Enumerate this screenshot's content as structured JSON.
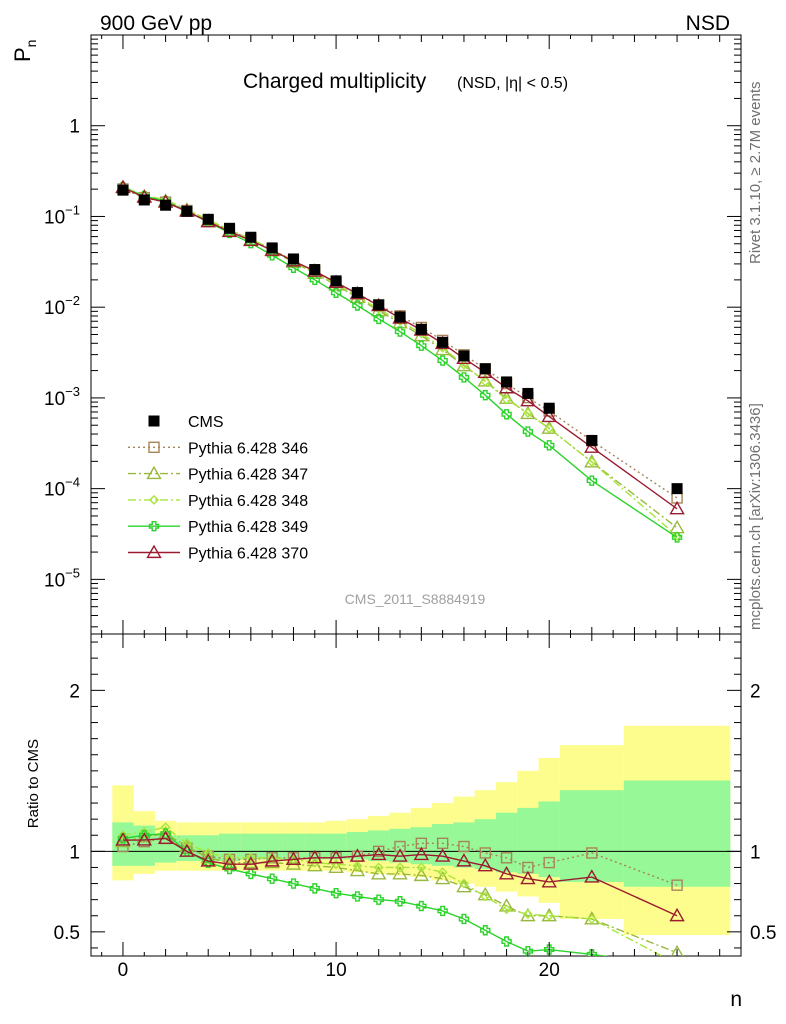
{
  "header": {
    "energy_label": "900 GeV pp",
    "process_label": "NSD"
  },
  "side_labels": {
    "rivet": "Rivet 3.1.10, ≥ 2.7M events",
    "mcplots": "mcplots.cern.ch [arXiv:1306.3436]"
  },
  "chart_data": {
    "type": "scatter",
    "title": "Charged multiplicity",
    "subtitle": "(NSD, |η| < 0.5)",
    "watermark": "CMS_2011_S8884919",
    "xlabel": "n",
    "ylabel_top": "P",
    "ylabel_top_sub": "n",
    "ylabel_bottom": "Ratio to CMS",
    "xlim": [
      -1.5,
      29
    ],
    "ylim_top": [
      2.5e-06,
      10
    ],
    "ylim_bottom": [
      0.35,
      2.35
    ],
    "yscale_top": "log",
    "x_ticks": [
      0,
      10,
      20
    ],
    "y_ticks_top": [
      {
        "value": 1,
        "base": "1",
        "exp": ""
      },
      {
        "value": 0.1,
        "base": "10",
        "exp": "−1"
      },
      {
        "value": 0.01,
        "base": "10",
        "exp": "−2"
      },
      {
        "value": 0.001,
        "base": "10",
        "exp": "−3"
      },
      {
        "value": 0.0001,
        "base": "10",
        "exp": "−4"
      },
      {
        "value": 1e-05,
        "base": "10",
        "exp": "−5"
      }
    ],
    "y_ticks_bottom": [
      {
        "value": 0.5,
        "label": "0.5"
      },
      {
        "value": 1,
        "label": "1"
      },
      {
        "value": 2,
        "label": "2"
      }
    ],
    "legend_position": "lower-left",
    "x": [
      0,
      1,
      2,
      3,
      4,
      5,
      6,
      7,
      8,
      9,
      10,
      11,
      12,
      13,
      14,
      15,
      16,
      17,
      18,
      19,
      20,
      22,
      26
    ],
    "bin_edges": [
      -0.5,
      0.5,
      1.5,
      2.5,
      3.5,
      4.5,
      5.5,
      6.5,
      7.5,
      8.5,
      9.5,
      10.5,
      11.5,
      12.5,
      13.5,
      14.5,
      15.5,
      16.5,
      17.5,
      18.5,
      19.5,
      20.5,
      23.5,
      28.5
    ],
    "data": {
      "name": "CMS",
      "values": [
        0.195,
        0.152,
        0.133,
        0.114,
        0.093,
        0.074,
        0.059,
        0.045,
        0.034,
        0.026,
        0.0195,
        0.0145,
        0.0106,
        0.0078,
        0.0057,
        0.0041,
        0.0029,
        0.0021,
        0.0015,
        0.00112,
        0.00077,
        0.00034,
        0.0001
      ],
      "band_inner": [
        [
          0.91,
          1.18
        ],
        [
          0.91,
          1.16
        ],
        [
          0.93,
          1.1
        ],
        [
          0.94,
          1.1
        ],
        [
          0.94,
          1.1
        ],
        [
          0.94,
          1.11
        ],
        [
          0.95,
          1.11
        ],
        [
          0.95,
          1.11
        ],
        [
          0.95,
          1.11
        ],
        [
          0.95,
          1.11
        ],
        [
          0.95,
          1.11
        ],
        [
          0.95,
          1.12
        ],
        [
          0.94,
          1.13
        ],
        [
          0.93,
          1.14
        ],
        [
          0.92,
          1.15
        ],
        [
          0.91,
          1.17
        ],
        [
          0.9,
          1.18
        ],
        [
          0.89,
          1.2
        ],
        [
          0.87,
          1.24
        ],
        [
          0.86,
          1.27
        ],
        [
          0.84,
          1.31
        ],
        [
          0.81,
          1.38
        ],
        [
          0.78,
          1.44
        ]
      ],
      "band_outer": [
        [
          0.82,
          1.41
        ],
        [
          0.86,
          1.25
        ],
        [
          0.88,
          1.19
        ],
        [
          0.88,
          1.18
        ],
        [
          0.88,
          1.18
        ],
        [
          0.88,
          1.18
        ],
        [
          0.88,
          1.18
        ],
        [
          0.88,
          1.18
        ],
        [
          0.88,
          1.18
        ],
        [
          0.88,
          1.18
        ],
        [
          0.88,
          1.19
        ],
        [
          0.87,
          1.2
        ],
        [
          0.86,
          1.22
        ],
        [
          0.85,
          1.24
        ],
        [
          0.84,
          1.27
        ],
        [
          0.82,
          1.3
        ],
        [
          0.8,
          1.34
        ],
        [
          0.78,
          1.38
        ],
        [
          0.75,
          1.43
        ],
        [
          0.72,
          1.5
        ],
        [
          0.68,
          1.58
        ],
        [
          0.58,
          1.66
        ],
        [
          0.48,
          1.78
        ]
      ]
    },
    "series": [
      {
        "name": "Pythia 6.428 346",
        "color": "#a8845a",
        "dash": "2,3",
        "marker": "open-square",
        "ratio": [
          1.03,
          1.06,
          1.08,
          1.02,
          0.97,
          0.95,
          0.95,
          0.96,
          0.96,
          0.96,
          0.96,
          0.97,
          1.0,
          1.03,
          1.05,
          1.05,
          1.03,
          0.99,
          0.96,
          0.9,
          0.93,
          0.99,
          0.79
        ]
      },
      {
        "name": "Pythia 6.428 347",
        "color": "#99b83e",
        "dash": "8,3,2,3",
        "marker": "open-triangle",
        "ratio": [
          1.06,
          1.09,
          1.11,
          1.03,
          0.96,
          0.93,
          0.93,
          0.93,
          0.92,
          0.91,
          0.9,
          0.88,
          0.86,
          0.86,
          0.85,
          0.83,
          0.78,
          0.73,
          0.66,
          0.6,
          0.6,
          0.58,
          0.37
        ]
      },
      {
        "name": "Pythia 6.428 348",
        "color": "#a8e63c",
        "dash": "8,3,2,3",
        "marker": "open-diamond",
        "ratio": [
          1.1,
          1.12,
          1.15,
          1.05,
          0.99,
          0.96,
          0.96,
          0.96,
          0.95,
          0.93,
          0.92,
          0.91,
          0.9,
          0.9,
          0.9,
          0.87,
          0.8,
          0.72,
          0.64,
          0.61,
          0.6,
          0.58,
          0.3
        ]
      },
      {
        "name": "Pythia 6.428 349",
        "color": "#2bd32b",
        "dash": "",
        "marker": "open-cross",
        "ratio": [
          1.08,
          1.1,
          1.11,
          1.0,
          0.93,
          0.89,
          0.86,
          0.83,
          0.8,
          0.77,
          0.74,
          0.72,
          0.7,
          0.69,
          0.66,
          0.63,
          0.58,
          0.51,
          0.44,
          0.38,
          0.39,
          0.36,
          0.29
        ]
      },
      {
        "name": "Pythia 6.428 370",
        "color": "#9b1b30",
        "dash": "",
        "marker": "open-triangle",
        "ratio": [
          1.07,
          1.07,
          1.08,
          1.0,
          0.94,
          0.92,
          0.92,
          0.94,
          0.95,
          0.96,
          0.96,
          0.97,
          0.98,
          0.97,
          0.98,
          0.97,
          0.94,
          0.91,
          0.86,
          0.83,
          0.81,
          0.84,
          0.6
        ]
      }
    ]
  }
}
